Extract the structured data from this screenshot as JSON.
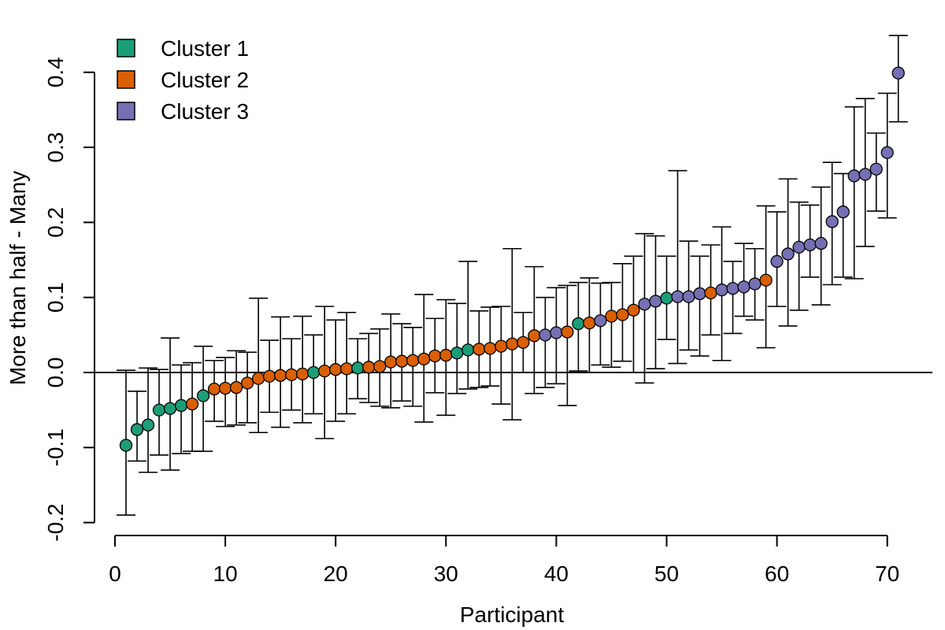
{
  "chart_data": {
    "type": "scatter",
    "title": "",
    "xlabel": "Participant",
    "ylabel": "More than half - Many",
    "xlim": [
      0,
      73
    ],
    "ylim": [
      -0.22,
      0.43
    ],
    "xticks": [
      0,
      10,
      20,
      30,
      40,
      50,
      60,
      70
    ],
    "yticks": [
      -0.2,
      -0.1,
      0.0,
      0.1,
      0.2,
      0.3,
      0.4
    ],
    "xtick_labels": [
      "0",
      "10",
      "20",
      "30",
      "40",
      "50",
      "60",
      "70"
    ],
    "ytick_labels": [
      "-0.2",
      "-0.1",
      "0.0",
      "0.1",
      "0.2",
      "0.3",
      "0.4"
    ],
    "reference_line": 0,
    "grid": false,
    "legend_position": "top-left",
    "legend": [
      {
        "name": "Cluster 1",
        "color": "#1B9E77"
      },
      {
        "name": "Cluster 2",
        "color": "#D95F02"
      },
      {
        "name": "Cluster 3",
        "color": "#7570B3"
      }
    ],
    "points": [
      {
        "x": 1,
        "y": -0.097,
        "lo": -0.19,
        "hi": 0.003,
        "cluster": 1
      },
      {
        "x": 2,
        "y": -0.076,
        "lo": -0.118,
        "hi": -0.025,
        "cluster": 1
      },
      {
        "x": 3,
        "y": -0.07,
        "lo": -0.133,
        "hi": 0.006,
        "cluster": 1
      },
      {
        "x": 4,
        "y": -0.05,
        "lo": -0.11,
        "hi": 0.004,
        "cluster": 1
      },
      {
        "x": 5,
        "y": -0.048,
        "lo": -0.13,
        "hi": 0.046,
        "cluster": 1
      },
      {
        "x": 6,
        "y": -0.044,
        "lo": -0.108,
        "hi": 0.01,
        "cluster": 1
      },
      {
        "x": 7,
        "y": -0.042,
        "lo": -0.105,
        "hi": 0.013,
        "cluster": 2
      },
      {
        "x": 8,
        "y": -0.031,
        "lo": -0.105,
        "hi": 0.035,
        "cluster": 1
      },
      {
        "x": 9,
        "y": -0.022,
        "lo": -0.065,
        "hi": 0.016,
        "cluster": 2
      },
      {
        "x": 10,
        "y": -0.021,
        "lo": -0.072,
        "hi": 0.02,
        "cluster": 2
      },
      {
        "x": 11,
        "y": -0.02,
        "lo": -0.07,
        "hi": 0.029,
        "cluster": 2
      },
      {
        "x": 12,
        "y": -0.014,
        "lo": -0.067,
        "hi": 0.027,
        "cluster": 2
      },
      {
        "x": 13,
        "y": -0.008,
        "lo": -0.08,
        "hi": 0.099,
        "cluster": 2
      },
      {
        "x": 14,
        "y": -0.005,
        "lo": -0.053,
        "hi": 0.043,
        "cluster": 2
      },
      {
        "x": 15,
        "y": -0.004,
        "lo": -0.073,
        "hi": 0.074,
        "cluster": 2
      },
      {
        "x": 16,
        "y": -0.003,
        "lo": -0.05,
        "hi": 0.045,
        "cluster": 2
      },
      {
        "x": 17,
        "y": -0.002,
        "lo": -0.067,
        "hi": 0.075,
        "cluster": 2
      },
      {
        "x": 18,
        "y": 0.0,
        "lo": -0.055,
        "hi": 0.05,
        "cluster": 1
      },
      {
        "x": 19,
        "y": 0.002,
        "lo": -0.088,
        "hi": 0.088,
        "cluster": 2
      },
      {
        "x": 20,
        "y": 0.004,
        "lo": -0.065,
        "hi": 0.07,
        "cluster": 2
      },
      {
        "x": 21,
        "y": 0.005,
        "lo": -0.055,
        "hi": 0.08,
        "cluster": 2
      },
      {
        "x": 22,
        "y": 0.006,
        "lo": -0.035,
        "hi": 0.045,
        "cluster": 1
      },
      {
        "x": 23,
        "y": 0.007,
        "lo": -0.04,
        "hi": 0.052,
        "cluster": 2
      },
      {
        "x": 24,
        "y": 0.008,
        "lo": -0.045,
        "hi": 0.058,
        "cluster": 2
      },
      {
        "x": 25,
        "y": 0.014,
        "lo": -0.047,
        "hi": 0.078,
        "cluster": 2
      },
      {
        "x": 26,
        "y": 0.015,
        "lo": -0.038,
        "hi": 0.065,
        "cluster": 2
      },
      {
        "x": 27,
        "y": 0.016,
        "lo": -0.045,
        "hi": 0.06,
        "cluster": 2
      },
      {
        "x": 28,
        "y": 0.018,
        "lo": -0.066,
        "hi": 0.104,
        "cluster": 2
      },
      {
        "x": 29,
        "y": 0.022,
        "lo": -0.027,
        "hi": 0.072,
        "cluster": 2
      },
      {
        "x": 30,
        "y": 0.023,
        "lo": -0.057,
        "hi": 0.097,
        "cluster": 2
      },
      {
        "x": 31,
        "y": 0.026,
        "lo": -0.028,
        "hi": 0.092,
        "cluster": 1
      },
      {
        "x": 32,
        "y": 0.03,
        "lo": -0.022,
        "hi": 0.148,
        "cluster": 1
      },
      {
        "x": 33,
        "y": 0.031,
        "lo": -0.02,
        "hi": 0.082,
        "cluster": 2
      },
      {
        "x": 34,
        "y": 0.032,
        "lo": -0.018,
        "hi": 0.087,
        "cluster": 2
      },
      {
        "x": 35,
        "y": 0.035,
        "lo": -0.042,
        "hi": 0.088,
        "cluster": 2
      },
      {
        "x": 36,
        "y": 0.038,
        "lo": -0.063,
        "hi": 0.165,
        "cluster": 2
      },
      {
        "x": 37,
        "y": 0.04,
        "lo": 0.0,
        "hi": 0.08,
        "cluster": 2
      },
      {
        "x": 38,
        "y": 0.049,
        "lo": -0.028,
        "hi": 0.141,
        "cluster": 2
      },
      {
        "x": 39,
        "y": 0.05,
        "lo": -0.02,
        "hi": 0.1,
        "cluster": 3
      },
      {
        "x": 40,
        "y": 0.053,
        "lo": -0.015,
        "hi": 0.113,
        "cluster": 3
      },
      {
        "x": 41,
        "y": 0.054,
        "lo": -0.044,
        "hi": 0.116,
        "cluster": 2
      },
      {
        "x": 42,
        "y": 0.065,
        "lo": 0.002,
        "hi": 0.12,
        "cluster": 1
      },
      {
        "x": 43,
        "y": 0.066,
        "lo": 0.0,
        "hi": 0.126,
        "cluster": 2
      },
      {
        "x": 44,
        "y": 0.069,
        "lo": 0.01,
        "hi": 0.119,
        "cluster": 3
      },
      {
        "x": 45,
        "y": 0.075,
        "lo": 0.007,
        "hi": 0.12,
        "cluster": 2
      },
      {
        "x": 46,
        "y": 0.077,
        "lo": 0.015,
        "hi": 0.145,
        "cluster": 2
      },
      {
        "x": 47,
        "y": 0.083,
        "lo": 0.0,
        "hi": 0.155,
        "cluster": 2
      },
      {
        "x": 48,
        "y": 0.091,
        "lo": -0.014,
        "hi": 0.185,
        "cluster": 3
      },
      {
        "x": 49,
        "y": 0.095,
        "lo": 0.005,
        "hi": 0.182,
        "cluster": 3
      },
      {
        "x": 50,
        "y": 0.099,
        "lo": 0.044,
        "hi": 0.155,
        "cluster": 1
      },
      {
        "x": 51,
        "y": 0.101,
        "lo": 0.012,
        "hi": 0.269,
        "cluster": 3
      },
      {
        "x": 52,
        "y": 0.101,
        "lo": 0.03,
        "hi": 0.175,
        "cluster": 3
      },
      {
        "x": 53,
        "y": 0.105,
        "lo": 0.022,
        "hi": 0.155,
        "cluster": 3
      },
      {
        "x": 54,
        "y": 0.106,
        "lo": 0.05,
        "hi": 0.17,
        "cluster": 2
      },
      {
        "x": 55,
        "y": 0.11,
        "lo": 0.016,
        "hi": 0.194,
        "cluster": 3
      },
      {
        "x": 56,
        "y": 0.112,
        "lo": 0.052,
        "hi": 0.148,
        "cluster": 3
      },
      {
        "x": 57,
        "y": 0.114,
        "lo": 0.075,
        "hi": 0.172,
        "cluster": 3
      },
      {
        "x": 58,
        "y": 0.118,
        "lo": 0.07,
        "hi": 0.165,
        "cluster": 3
      },
      {
        "x": 59,
        "y": 0.123,
        "lo": 0.033,
        "hi": 0.222,
        "cluster": 2
      },
      {
        "x": 60,
        "y": 0.148,
        "lo": 0.088,
        "hi": 0.214,
        "cluster": 3
      },
      {
        "x": 61,
        "y": 0.158,
        "lo": 0.062,
        "hi": 0.258,
        "cluster": 3
      },
      {
        "x": 62,
        "y": 0.167,
        "lo": 0.083,
        "hi": 0.227,
        "cluster": 3
      },
      {
        "x": 63,
        "y": 0.17,
        "lo": 0.127,
        "hi": 0.223,
        "cluster": 3
      },
      {
        "x": 64,
        "y": 0.172,
        "lo": 0.09,
        "hi": 0.247,
        "cluster": 3
      },
      {
        "x": 65,
        "y": 0.201,
        "lo": 0.117,
        "hi": 0.28,
        "cluster": 3
      },
      {
        "x": 66,
        "y": 0.214,
        "lo": 0.127,
        "hi": 0.265,
        "cluster": 3
      },
      {
        "x": 67,
        "y": 0.262,
        "lo": 0.125,
        "hi": 0.354,
        "cluster": 3
      },
      {
        "x": 68,
        "y": 0.264,
        "lo": 0.168,
        "hi": 0.365,
        "cluster": 3
      },
      {
        "x": 69,
        "y": 0.271,
        "lo": 0.215,
        "hi": 0.319,
        "cluster": 3
      },
      {
        "x": 70,
        "y": 0.293,
        "lo": 0.206,
        "hi": 0.372,
        "cluster": 3
      },
      {
        "x": 71,
        "y": 0.399,
        "lo": 0.334,
        "hi": 0.449,
        "cluster": 3
      }
    ]
  }
}
